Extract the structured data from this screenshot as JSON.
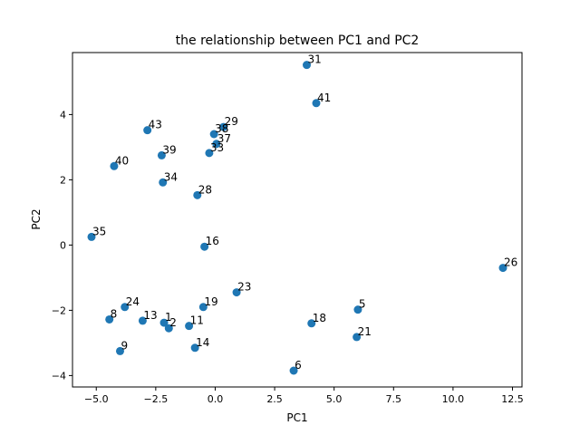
{
  "chart_data": {
    "type": "scatter",
    "title": "the relationship between PC1 and PC2",
    "xlabel": "PC1",
    "ylabel": "PC2",
    "xlim": [
      -6.0,
      12.9
    ],
    "ylim": [
      -4.35,
      5.9
    ],
    "xticks": [
      {
        "value": -5.0,
        "label": "−5.0"
      },
      {
        "value": -2.5,
        "label": "−2.5"
      },
      {
        "value": 0.0,
        "label": "0.0"
      },
      {
        "value": 2.5,
        "label": "2.5"
      },
      {
        "value": 5.0,
        "label": "5.0"
      },
      {
        "value": 7.5,
        "label": "7.5"
      },
      {
        "value": 10.0,
        "label": "10.0"
      },
      {
        "value": 12.5,
        "label": "12.5"
      }
    ],
    "yticks": [
      {
        "value": -4,
        "label": "−4"
      },
      {
        "value": -2,
        "label": "−2"
      },
      {
        "value": 0,
        "label": "0"
      },
      {
        "value": 2,
        "label": "2"
      },
      {
        "value": 4,
        "label": "4"
      }
    ],
    "grid": false,
    "point_color": "#1f77b4",
    "points": [
      {
        "label": "31",
        "x": 3.85,
        "y": 5.52
      },
      {
        "label": "41",
        "x": 4.25,
        "y": 4.35
      },
      {
        "label": "43",
        "x": -2.85,
        "y": 3.52
      },
      {
        "label": "29",
        "x": 0.35,
        "y": 3.62
      },
      {
        "label": "38",
        "x": -0.05,
        "y": 3.4
      },
      {
        "label": "37",
        "x": 0.05,
        "y": 3.1
      },
      {
        "label": "33",
        "x": -0.25,
        "y": 2.82
      },
      {
        "label": "39",
        "x": -2.25,
        "y": 2.75
      },
      {
        "label": "40",
        "x": -4.25,
        "y": 2.42
      },
      {
        "label": "34",
        "x": -2.2,
        "y": 1.92
      },
      {
        "label": "28",
        "x": -0.75,
        "y": 1.53
      },
      {
        "label": "35",
        "x": -5.2,
        "y": 0.25
      },
      {
        "label": "16",
        "x": -0.45,
        "y": -0.05
      },
      {
        "label": "26",
        "x": 12.1,
        "y": -0.7
      },
      {
        "label": "23",
        "x": 0.9,
        "y": -1.45
      },
      {
        "label": "5",
        "x": 6.0,
        "y": -1.98
      },
      {
        "label": "24",
        "x": -3.8,
        "y": -1.9
      },
      {
        "label": "19",
        "x": -0.5,
        "y": -1.9
      },
      {
        "label": "8",
        "x": -4.45,
        "y": -2.28
      },
      {
        "label": "13",
        "x": -3.05,
        "y": -2.32
      },
      {
        "label": "1",
        "x": -2.15,
        "y": -2.38
      },
      {
        "label": "18",
        "x": 4.05,
        "y": -2.4
      },
      {
        "label": "11",
        "x": -1.1,
        "y": -2.48
      },
      {
        "label": "2",
        "x": -1.95,
        "y": -2.55
      },
      {
        "label": "21",
        "x": 5.95,
        "y": -2.82
      },
      {
        "label": "14",
        "x": -0.85,
        "y": -3.15
      },
      {
        "label": "9",
        "x": -4.0,
        "y": -3.25
      },
      {
        "label": "6",
        "x": 3.3,
        "y": -3.85
      }
    ]
  }
}
